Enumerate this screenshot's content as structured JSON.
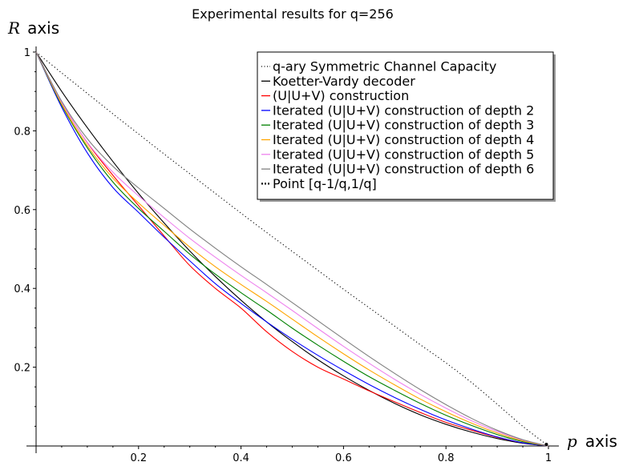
{
  "chart_data": {
    "type": "line",
    "title": "Experimental results for q=256",
    "xlabel": {
      "symbol": "p",
      "word": "axis"
    },
    "ylabel": {
      "symbol": "R",
      "word": "axis"
    },
    "xlim": [
      0,
      1
    ],
    "ylim": [
      0,
      1
    ],
    "x_ticks": [
      0.2,
      0.4,
      0.6,
      0.8,
      1
    ],
    "x_tick_labels": [
      "0.2",
      "0.4",
      "0.6",
      "0.8",
      "1"
    ],
    "y_ticks": [
      0.2,
      0.4,
      0.6,
      0.8,
      1
    ],
    "y_tick_labels": [
      "0.2",
      "0.4",
      "0.6",
      "0.8",
      "1"
    ],
    "legend_position": "top-right",
    "series": [
      {
        "name": "q-ary Symmetric Channel Capacity",
        "color": "#000000",
        "style": "dotted",
        "x": [
          0,
          0.05,
          0.1,
          0.15,
          0.2,
          0.25,
          0.3,
          0.35,
          0.4,
          0.45,
          0.5,
          0.55,
          0.6,
          0.65,
          0.7,
          0.75,
          0.8,
          0.85,
          0.9,
          0.95,
          1
        ],
        "y": [
          1,
          0.947,
          0.895,
          0.843,
          0.792,
          0.741,
          0.691,
          0.641,
          0.591,
          0.542,
          0.494,
          0.446,
          0.398,
          0.351,
          0.304,
          0.257,
          0.211,
          0.161,
          0.106,
          0.05,
          0
        ]
      },
      {
        "name": "Koetter-Vardy decoder",
        "color": "#000000",
        "style": "solid",
        "x": [
          0,
          0.05,
          0.1,
          0.15,
          0.2,
          0.25,
          0.3,
          0.35,
          0.4,
          0.45,
          0.5,
          0.55,
          0.6,
          0.65,
          0.7,
          0.75,
          0.8,
          0.85,
          0.9,
          0.95,
          1
        ],
        "y": [
          1,
          0.9,
          0.808,
          0.722,
          0.641,
          0.566,
          0.495,
          0.43,
          0.37,
          0.315,
          0.265,
          0.219,
          0.178,
          0.141,
          0.108,
          0.079,
          0.055,
          0.035,
          0.019,
          0.007,
          0
        ]
      },
      {
        "name": "(U|U+V) construction",
        "color": "#ff0000",
        "style": "solid",
        "x": [
          0,
          0.05,
          0.1,
          0.15,
          0.2,
          0.25,
          0.3,
          0.35,
          0.4,
          0.45,
          0.5,
          0.55,
          0.6,
          0.65,
          0.7,
          0.75,
          0.8,
          0.85,
          0.9,
          0.95,
          1
        ],
        "y": [
          1,
          0.872,
          0.77,
          0.687,
          0.61,
          0.533,
          0.458,
          0.4,
          0.35,
          0.29,
          0.24,
          0.2,
          0.17,
          0.14,
          0.112,
          0.085,
          0.06,
          0.04,
          0.022,
          0.008,
          0
        ]
      },
      {
        "name": "Iterated (U|U+V) construction of depth 2",
        "color": "#0000ff",
        "style": "solid",
        "x": [
          0,
          0.05,
          0.1,
          0.15,
          0.2,
          0.25,
          0.3,
          0.35,
          0.4,
          0.45,
          0.5,
          0.55,
          0.6,
          0.65,
          0.7,
          0.75,
          0.8,
          0.85,
          0.9,
          0.95,
          1
        ],
        "y": [
          1,
          0.86,
          0.744,
          0.656,
          0.593,
          0.53,
          0.47,
          0.412,
          0.362,
          0.315,
          0.271,
          0.23,
          0.192,
          0.156,
          0.123,
          0.093,
          0.066,
          0.043,
          0.023,
          0.008,
          0
        ]
      },
      {
        "name": "Iterated (U|U+V) construction of depth 3",
        "color": "#008000",
        "style": "solid",
        "x": [
          0,
          0.05,
          0.1,
          0.15,
          0.2,
          0.25,
          0.3,
          0.35,
          0.4,
          0.45,
          0.5,
          0.55,
          0.6,
          0.65,
          0.7,
          0.75,
          0.8,
          0.85,
          0.9,
          0.95,
          1
        ],
        "y": [
          1,
          0.865,
          0.757,
          0.67,
          0.603,
          0.545,
          0.487,
          0.436,
          0.389,
          0.345,
          0.299,
          0.256,
          0.215,
          0.176,
          0.141,
          0.108,
          0.078,
          0.052,
          0.029,
          0.011,
          0
        ]
      },
      {
        "name": "Iterated (U|U+V) construction of depth 4",
        "color": "#ffa500",
        "style": "solid",
        "x": [
          0,
          0.05,
          0.1,
          0.15,
          0.2,
          0.25,
          0.3,
          0.35,
          0.4,
          0.45,
          0.5,
          0.55,
          0.6,
          0.65,
          0.7,
          0.75,
          0.8,
          0.85,
          0.9,
          0.95,
          1
        ],
        "y": [
          1,
          0.868,
          0.762,
          0.68,
          0.617,
          0.56,
          0.505,
          0.455,
          0.41,
          0.367,
          0.322,
          0.277,
          0.234,
          0.193,
          0.155,
          0.119,
          0.087,
          0.058,
          0.033,
          0.013,
          0
        ]
      },
      {
        "name": "Iterated (U|U+V) construction of depth 5",
        "color": "#ee82ee",
        "style": "solid",
        "x": [
          0,
          0.05,
          0.1,
          0.15,
          0.2,
          0.25,
          0.3,
          0.35,
          0.4,
          0.45,
          0.5,
          0.55,
          0.6,
          0.65,
          0.7,
          0.75,
          0.8,
          0.85,
          0.9,
          0.95,
          1
        ],
        "y": [
          1,
          0.872,
          0.771,
          0.695,
          0.635,
          0.58,
          0.527,
          0.479,
          0.433,
          0.389,
          0.344,
          0.298,
          0.253,
          0.21,
          0.169,
          0.131,
          0.096,
          0.064,
          0.037,
          0.015,
          0
        ]
      },
      {
        "name": "Iterated (U|U+V) construction of depth 6",
        "color": "#808080",
        "style": "solid",
        "x": [
          0,
          0.05,
          0.1,
          0.15,
          0.2,
          0.25,
          0.3,
          0.35,
          0.4,
          0.45,
          0.5,
          0.55,
          0.6,
          0.65,
          0.7,
          0.75,
          0.8,
          0.85,
          0.9,
          0.95,
          1
        ],
        "y": [
          1,
          0.875,
          0.78,
          0.71,
          0.655,
          0.603,
          0.551,
          0.502,
          0.455,
          0.41,
          0.364,
          0.318,
          0.272,
          0.227,
          0.184,
          0.143,
          0.105,
          0.07,
          0.04,
          0.016,
          0
        ]
      },
      {
        "name": "Point [q-1/q,1/q]",
        "color": "#000000",
        "style": "point",
        "x": [
          0.996
        ],
        "y": [
          0.004
        ]
      }
    ]
  }
}
